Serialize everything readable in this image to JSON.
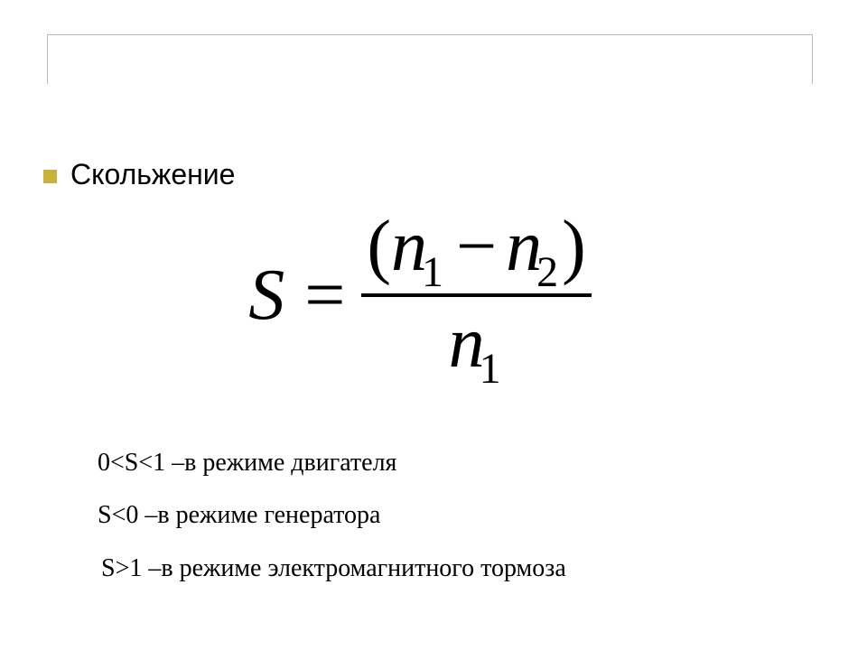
{
  "colors": {
    "background": "#ffffff",
    "bullet": "#c8b239",
    "frame": "#b8b8b8",
    "text": "#000000"
  },
  "heading": {
    "text": "Скольжение",
    "fontsize": 32
  },
  "formula": {
    "lhs_var": "S",
    "equals": "=",
    "numerator": {
      "lparen": "(",
      "var1": "n",
      "sub1": "1",
      "minus": "−",
      "var2": "n",
      "sub2": "2",
      "rparen": ")"
    },
    "denominator": {
      "var": "n",
      "sub": "1"
    },
    "var_fontsize": 80,
    "sub_fontsize": 48
  },
  "conditions": {
    "line1": "0<S<1 –в режиме двигателя",
    "line2": "S<0 –в режиме генератора",
    "line3": "S>1 –в режиме электромагнитного тормоза",
    "fontsize": 28
  }
}
